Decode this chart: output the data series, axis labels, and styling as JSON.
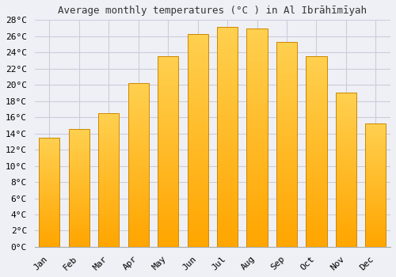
{
  "title": "Average monthly temperatures (°C ) in Al Ibrāhīmīyah",
  "months": [
    "Jan",
    "Feb",
    "Mar",
    "Apr",
    "May",
    "Jun",
    "Jul",
    "Aug",
    "Sep",
    "Oct",
    "Nov",
    "Dec"
  ],
  "temperatures": [
    13.5,
    14.5,
    16.5,
    20.2,
    23.5,
    26.3,
    27.1,
    27.0,
    25.3,
    23.5,
    19.0,
    15.2
  ],
  "ylim": [
    0,
    28
  ],
  "yticks": [
    0,
    2,
    4,
    6,
    8,
    10,
    12,
    14,
    16,
    18,
    20,
    22,
    24,
    26,
    28
  ],
  "ytick_labels": [
    "0°C",
    "2°C",
    "4°C",
    "6°C",
    "8°C",
    "10°C",
    "12°C",
    "14°C",
    "16°C",
    "18°C",
    "20°C",
    "22°C",
    "24°C",
    "26°C",
    "28°C"
  ],
  "bar_color_bottom": "#FFA500",
  "bar_color_top": "#FFD050",
  "bar_edge_color": "#CC8800",
  "background_color": "#eef0f5",
  "grid_color": "#ccccdd",
  "title_fontsize": 9,
  "tick_fontsize": 8,
  "bar_width": 0.7
}
